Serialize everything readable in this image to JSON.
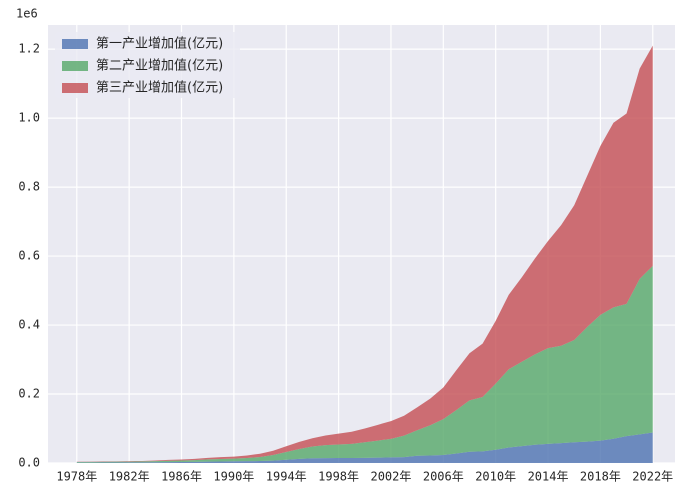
{
  "chart_data": {
    "type": "stacked_area",
    "offset_label": "1e6",
    "x": [
      1978,
      1979,
      1980,
      1981,
      1982,
      1983,
      1984,
      1985,
      1986,
      1987,
      1988,
      1989,
      1990,
      1991,
      1992,
      1993,
      1994,
      1995,
      1996,
      1997,
      1998,
      1999,
      2000,
      2001,
      2002,
      2003,
      2004,
      2005,
      2006,
      2007,
      2008,
      2009,
      2010,
      2011,
      2012,
      2013,
      2014,
      2015,
      2016,
      2017,
      2018,
      2019,
      2020,
      2021,
      2022
    ],
    "series": [
      {
        "name": "第一产业增加值(亿元)",
        "color": "#4c72b0",
        "values": [
          1018,
          1259,
          1359,
          1546,
          1762,
          1960,
          2295,
          2541,
          2764,
          3204,
          3831,
          4228,
          5017,
          5288,
          5800,
          6887,
          9471,
          12020,
          13878,
          14265,
          14618,
          14548,
          14717,
          15502,
          16190,
          16970,
          20904,
          21806,
          23317,
          27674,
          32464,
          33583,
          38430,
          44781,
          49085,
          53028,
          55626,
          57775,
          60139,
          62100,
          64745,
          70474,
          77754,
          83086,
          88345
        ]
      },
      {
        "name": "第二产业增加值(亿元)",
        "color": "#55a868",
        "values": [
          1755,
          1925,
          2205,
          2269,
          2397,
          2664,
          3106,
          3867,
          4493,
          5252,
          6587,
          7278,
          7717,
          9102,
          11700,
          16454,
          22445,
          28679,
          33835,
          37543,
          39004,
          41034,
          45556,
          49512,
          53897,
          62436,
          73904,
          87598,
          103720,
          125831,
          149003,
          157639,
          191630,
          227038,
          244643,
          261956,
          277572,
          282040,
          296547,
          332743,
          364835,
          380671,
          383562,
          450904,
          483164
        ]
      },
      {
        "name": "第三产业增加值(亿元)",
        "color": "#c44e52",
        "values": [
          905,
          979,
          982,
          1077,
          1163,
          1338,
          1786,
          2585,
          2994,
          3574,
          4590,
          5448,
          5888,
          7337,
          9357,
          12313,
          16713,
          20642,
          24108,
          27904,
          31559,
          34935,
          39898,
          45701,
          51423,
          57757,
          66648,
          77428,
          91760,
          115811,
          136806,
          154748,
          182038,
          216099,
          244856,
          277984,
          310654,
          349745,
          390828,
          438356,
          489701,
          535371,
          551974,
          609680,
          638698
        ]
      }
    ],
    "xlim": [
      1975.8,
      2023.7
    ],
    "xticks": [
      {
        "value": 1978,
        "label": "1978年"
      },
      {
        "value": 1982,
        "label": "1982年"
      },
      {
        "value": 1986,
        "label": "1986年"
      },
      {
        "value": 1990,
        "label": "1990年"
      },
      {
        "value": 1994,
        "label": "1994年"
      },
      {
        "value": 1998,
        "label": "1998年"
      },
      {
        "value": 2002,
        "label": "2002年"
      },
      {
        "value": 2006,
        "label": "2006年"
      },
      {
        "value": 2010,
        "label": "2010年"
      },
      {
        "value": 2014,
        "label": "2014年"
      },
      {
        "value": 2018,
        "label": "2018年"
      },
      {
        "value": 2022,
        "label": "2022年"
      }
    ],
    "ylim": [
      0,
      1270000
    ],
    "yticks": [
      {
        "value": 0,
        "label": "0.0"
      },
      {
        "value": 200000,
        "label": "0.2"
      },
      {
        "value": 400000,
        "label": "0.4"
      },
      {
        "value": 600000,
        "label": "0.6"
      },
      {
        "value": 800000,
        "label": "0.8"
      },
      {
        "value": 1000000,
        "label": "1.0"
      },
      {
        "value": 1200000,
        "label": "1.2"
      }
    ],
    "grid": true,
    "legend": "upper left",
    "alpha": 0.8
  }
}
